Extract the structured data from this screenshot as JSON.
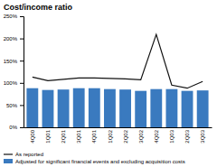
{
  "chart_data": {
    "type": "bar",
    "title": "Cost/income ratio",
    "categories": [
      "4Q00",
      "1Q01",
      "2Q01",
      "3Q01",
      "4Q01",
      "1Q02",
      "2Q02",
      "3Q02",
      "4Q02",
      "1Q03",
      "2Q03",
      "3Q03"
    ],
    "series": [
      {
        "name": "As reported",
        "type": "line",
        "color": "#111111",
        "values": [
          113,
          105,
          108,
          111,
          111,
          110,
          109,
          107,
          209,
          95,
          88,
          103
        ]
      },
      {
        "name": "Adjusted for significant financial events and excluding acquisition costs",
        "type": "bar",
        "color": "#3a7abf",
        "values": [
          88,
          84,
          85,
          88,
          88,
          86,
          85,
          82,
          86,
          86,
          82,
          83
        ]
      }
    ],
    "ylim": [
      0,
      250
    ],
    "yticks": [
      {
        "value": 0,
        "label": "0%"
      },
      {
        "value": 50,
        "label": "50%"
      },
      {
        "value": 100,
        "label": "100%"
      },
      {
        "value": 150,
        "label": "150%"
      },
      {
        "value": 200,
        "label": "200%"
      },
      {
        "value": 250,
        "label": "250%"
      }
    ],
    "legend": "bottom"
  }
}
